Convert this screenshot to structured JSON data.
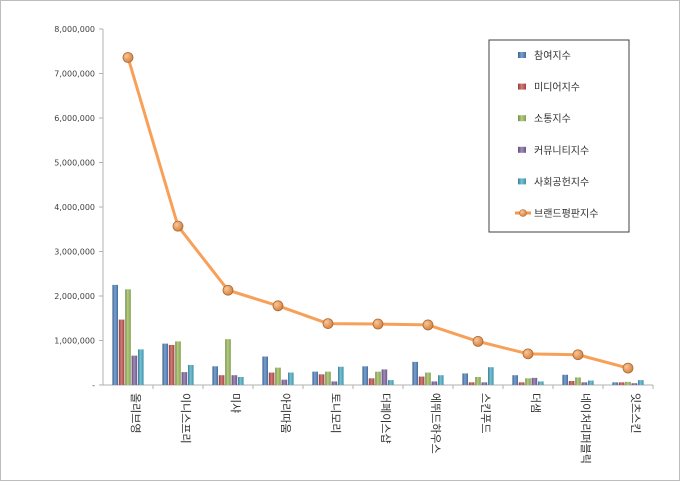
{
  "chart_data": {
    "type": "bar",
    "categories": [
      "올리브영",
      "이니스프리",
      "미샤",
      "아리따움",
      "토니모리",
      "더페이스샵",
      "에뛰드하우스",
      "스킨푸드",
      "더샘",
      "네이처리퍼블릭",
      "잇츠스킨"
    ],
    "series": [
      {
        "name": "참여지수",
        "type": "bar",
        "color": "#4f81bd",
        "values": [
          2250000,
          930000,
          420000,
          640000,
          300000,
          420000,
          520000,
          260000,
          220000,
          230000,
          60000
        ]
      },
      {
        "name": "미디어지수",
        "type": "bar",
        "color": "#c0504d",
        "values": [
          1470000,
          900000,
          220000,
          280000,
          240000,
          150000,
          190000,
          60000,
          60000,
          90000,
          60000
        ]
      },
      {
        "name": "소통지수",
        "type": "bar",
        "color": "#9bbb59",
        "values": [
          2150000,
          980000,
          1030000,
          390000,
          300000,
          300000,
          280000,
          180000,
          150000,
          170000,
          70000
        ]
      },
      {
        "name": "커뮤니티지수",
        "type": "bar",
        "color": "#8064a2",
        "values": [
          660000,
          290000,
          220000,
          120000,
          80000,
          350000,
          80000,
          60000,
          160000,
          60000,
          40000
        ]
      },
      {
        "name": "사회공헌지수",
        "type": "bar",
        "color": "#4bacc6",
        "values": [
          800000,
          450000,
          180000,
          280000,
          410000,
          110000,
          220000,
          400000,
          80000,
          100000,
          110000
        ]
      },
      {
        "name": "브랜드평판지수",
        "type": "line",
        "color": "#f79646",
        "values": [
          7360000,
          3570000,
          2130000,
          1780000,
          1380000,
          1370000,
          1350000,
          980000,
          700000,
          680000,
          380000
        ]
      }
    ],
    "yticks": [
      "8,000,000",
      "7,000,000",
      "6,000,000",
      "5,000,000",
      "4,000,000",
      "3,000,000",
      "2,000,000",
      "1,000,000",
      "-"
    ],
    "ylim": [
      0,
      8000000
    ],
    "legend_position": "top-right",
    "grid": false
  }
}
